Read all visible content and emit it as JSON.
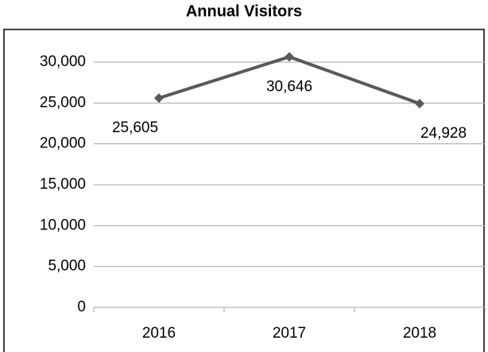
{
  "chart_data": {
    "type": "line",
    "title": "Annual Visitors",
    "categories": [
      "2016",
      "2017",
      "2018"
    ],
    "series": [
      {
        "name": "Visitors",
        "color": "#595959",
        "values": [
          25605,
          30646,
          24928
        ],
        "value_labels": [
          "25,605",
          "30,646",
          "24,928"
        ]
      }
    ],
    "ylim": [
      0,
      30000
    ],
    "yticks": [
      0,
      {
        "value": 5000,
        "label": "5,000"
      },
      {
        "value": 10000,
        "label": "10,000"
      },
      {
        "value": 15000,
        "label": "15,000"
      },
      {
        "value": 20000,
        "label": "20,000"
      },
      {
        "value": 25000,
        "label": "25,000"
      },
      {
        "value": 30000,
        "label": "30,000"
      }
    ],
    "grid": true
  }
}
